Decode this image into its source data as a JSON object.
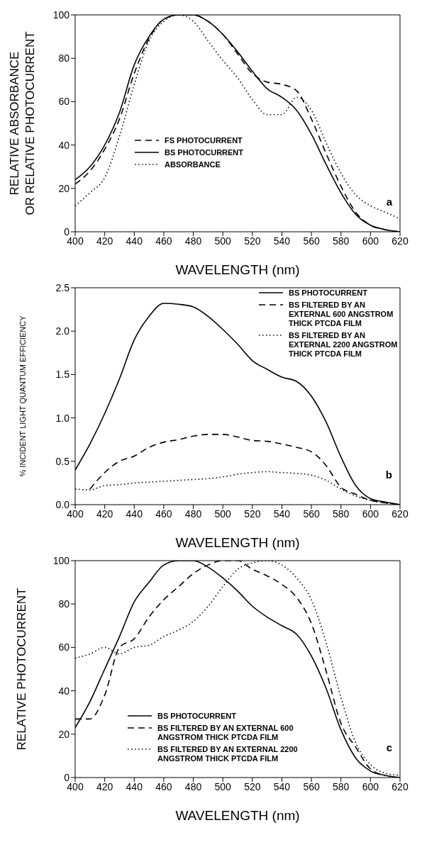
{
  "chart_data": [
    {
      "type": "line",
      "xlabel": "WAVELENGTH (nm)",
      "ylabel": "RELATIVE ABSORBANCE\nOR RELATIVE PHOTOCURRENT",
      "x": [
        400,
        410,
        420,
        430,
        440,
        450,
        460,
        470,
        480,
        490,
        500,
        510,
        520,
        530,
        540,
        550,
        560,
        570,
        580,
        590,
        600,
        610,
        620
      ],
      "xlim": [
        400,
        620
      ],
      "xticks": [
        400,
        420,
        440,
        460,
        480,
        500,
        520,
        540,
        560,
        580,
        600,
        620
      ],
      "ylim": [
        0,
        100
      ],
      "yticks": [
        0,
        20,
        40,
        60,
        80,
        100
      ],
      "legend": "bottom left",
      "marker": "none",
      "annotations": [
        "a"
      ],
      "series": [
        {
          "name": "FS PHOTOCURRENT",
          "color": "#000000",
          "line_style": "dashed",
          "values": [
            22,
            28,
            38,
            52,
            73,
            89,
            98,
            100,
            100,
            97,
            91,
            82,
            73,
            69,
            68,
            65,
            52,
            36,
            21,
            9,
            3,
            1,
            0
          ]
        },
        {
          "name": "BS PHOTOCURRENT",
          "color": "#000000",
          "line_style": "solid",
          "values": [
            24,
            30,
            40,
            55,
            77,
            90,
            98,
            100,
            100,
            97,
            91,
            83,
            74,
            66,
            62,
            56,
            45,
            31,
            18,
            8,
            3,
            1,
            0
          ]
        },
        {
          "name": "ABSORBANCE",
          "color": "#000000",
          "line_style": "dotted",
          "values": [
            12,
            18,
            25,
            44,
            68,
            88,
            97,
            100,
            97,
            88,
            79,
            71,
            61,
            54,
            54,
            62,
            56,
            41,
            27,
            17,
            12,
            9,
            6
          ]
        }
      ]
    },
    {
      "type": "line",
      "xlabel": "WAVELENGTH (nm)",
      "ylabel": "% INCIDENT LIGHT QUANTUM EFFICIENCY",
      "x": [
        400,
        410,
        420,
        430,
        440,
        450,
        460,
        470,
        480,
        490,
        500,
        510,
        520,
        530,
        540,
        550,
        560,
        570,
        580,
        590,
        600,
        610,
        620
      ],
      "xlim": [
        400,
        620
      ],
      "xticks": [
        400,
        420,
        440,
        460,
        480,
        500,
        520,
        540,
        560,
        580,
        600,
        620
      ],
      "ylim": [
        0,
        2.5
      ],
      "yticks": [
        {
          "value": 0,
          "label": "0.0"
        },
        0.5,
        {
          "value": 1,
          "label": "1.0"
        },
        1.5,
        {
          "value": 2,
          "label": "2.0"
        },
        2.5
      ],
      "legend": "top right",
      "marker": "none",
      "annotations": [
        "b"
      ],
      "series": [
        {
          "name": "BS PHOTOCURRENT",
          "color": "#000000",
          "line_style": "solid",
          "values": [
            0.4,
            0.7,
            1.05,
            1.45,
            1.9,
            2.17,
            2.32,
            2.31,
            2.28,
            2.17,
            2.02,
            1.85,
            1.66,
            1.56,
            1.47,
            1.42,
            1.25,
            0.95,
            0.55,
            0.22,
            0.07,
            0.03,
            0
          ]
        },
        {
          "name": "BS FILTERED BY AN EXTERNAL 600 ANGSTROM THICK PTCDA FILM",
          "color": "#000000",
          "line_style": "dashed",
          "values": [
            null,
            0.18,
            0.37,
            0.5,
            0.56,
            0.66,
            0.72,
            0.75,
            0.79,
            0.81,
            0.81,
            0.78,
            0.74,
            0.73,
            0.7,
            0.66,
            0.61,
            0.45,
            0.2,
            0.12,
            0.05,
            0.02,
            0
          ]
        },
        {
          "name": "BS FILTERED BY AN EXTERNAL 2200 ANGSTROM THICK PTCDA FILM",
          "color": "#000000",
          "line_style": "dotted",
          "values": [
            0.18,
            0.17,
            0.22,
            0.23,
            0.25,
            0.26,
            0.27,
            0.28,
            0.29,
            0.3,
            0.32,
            0.35,
            0.37,
            0.38,
            0.37,
            0.36,
            0.34,
            0.28,
            0.18,
            0.1,
            0.05,
            0.02,
            0
          ]
        }
      ]
    },
    {
      "type": "line",
      "xlabel": "WAVELENGTH (nm)",
      "ylabel": "RELATIVE PHOTOCURRENT",
      "x": [
        400,
        410,
        420,
        430,
        440,
        450,
        460,
        470,
        480,
        490,
        500,
        510,
        520,
        530,
        540,
        550,
        560,
        570,
        580,
        590,
        600,
        610,
        620
      ],
      "xlim": [
        400,
        620
      ],
      "xticks": [
        400,
        420,
        440,
        460,
        480,
        500,
        520,
        540,
        560,
        580,
        600,
        620
      ],
      "ylim": [
        0,
        100
      ],
      "yticks": [
        0,
        20,
        40,
        60,
        80,
        100
      ],
      "legend": "bottom",
      "marker": "none",
      "annotations": [
        "c"
      ],
      "series": [
        {
          "name": "BS PHOTOCURRENT",
          "color": "#000000",
          "line_style": "solid",
          "values": [
            23,
            35,
            50,
            65,
            81,
            90,
            98,
            100,
            100,
            97,
            92,
            86,
            79,
            74,
            70,
            66,
            56,
            41,
            22,
            9,
            3,
            1,
            0
          ]
        },
        {
          "name": "BS FILTERED BY AN EXTERNAL 600 ANGSTROM THICK PTCDA FILM",
          "color": "#000000",
          "line_style": "dashed",
          "values": [
            27,
            27,
            38,
            60,
            64,
            74,
            82,
            88,
            94,
            98,
            100,
            100,
            96,
            93,
            89,
            83,
            71,
            49,
            25,
            14,
            4,
            1,
            null
          ]
        },
        {
          "name": "BS FILTERED BY AN EXTERNAL 2200 ANGSTROM THICK PTCDA FILM",
          "color": "#000000",
          "line_style": "dotted",
          "values": [
            55,
            57,
            60,
            57,
            60,
            61,
            65,
            68,
            72,
            79,
            88,
            96,
            99,
            100,
            98,
            92,
            82,
            62,
            37,
            16,
            6,
            2,
            1
          ]
        }
      ]
    }
  ]
}
